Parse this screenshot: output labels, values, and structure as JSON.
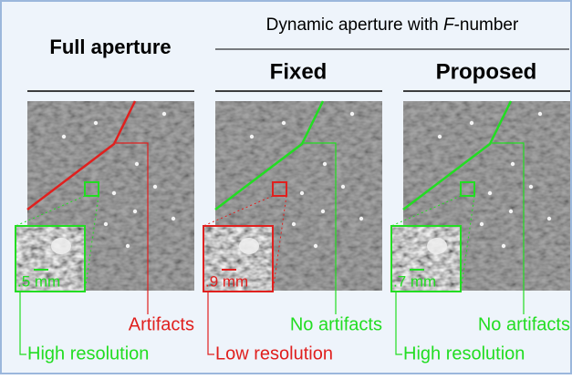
{
  "header": {
    "full_aperture": "Full aperture",
    "dynamic_parts": [
      "Dynamic aperture with ",
      "F",
      "-number"
    ]
  },
  "panels": [
    {
      "title": null,
      "scale": ".5 mm",
      "artifacts": "Artifacts",
      "resolution": "High resolution"
    },
    {
      "title": "Fixed",
      "scale": ".9 mm",
      "artifacts": "No artifacts",
      "resolution": "Low resolution"
    },
    {
      "title": "Proposed",
      "scale": ".7 mm",
      "artifacts": "No artifacts",
      "resolution": "High resolution"
    }
  ]
}
